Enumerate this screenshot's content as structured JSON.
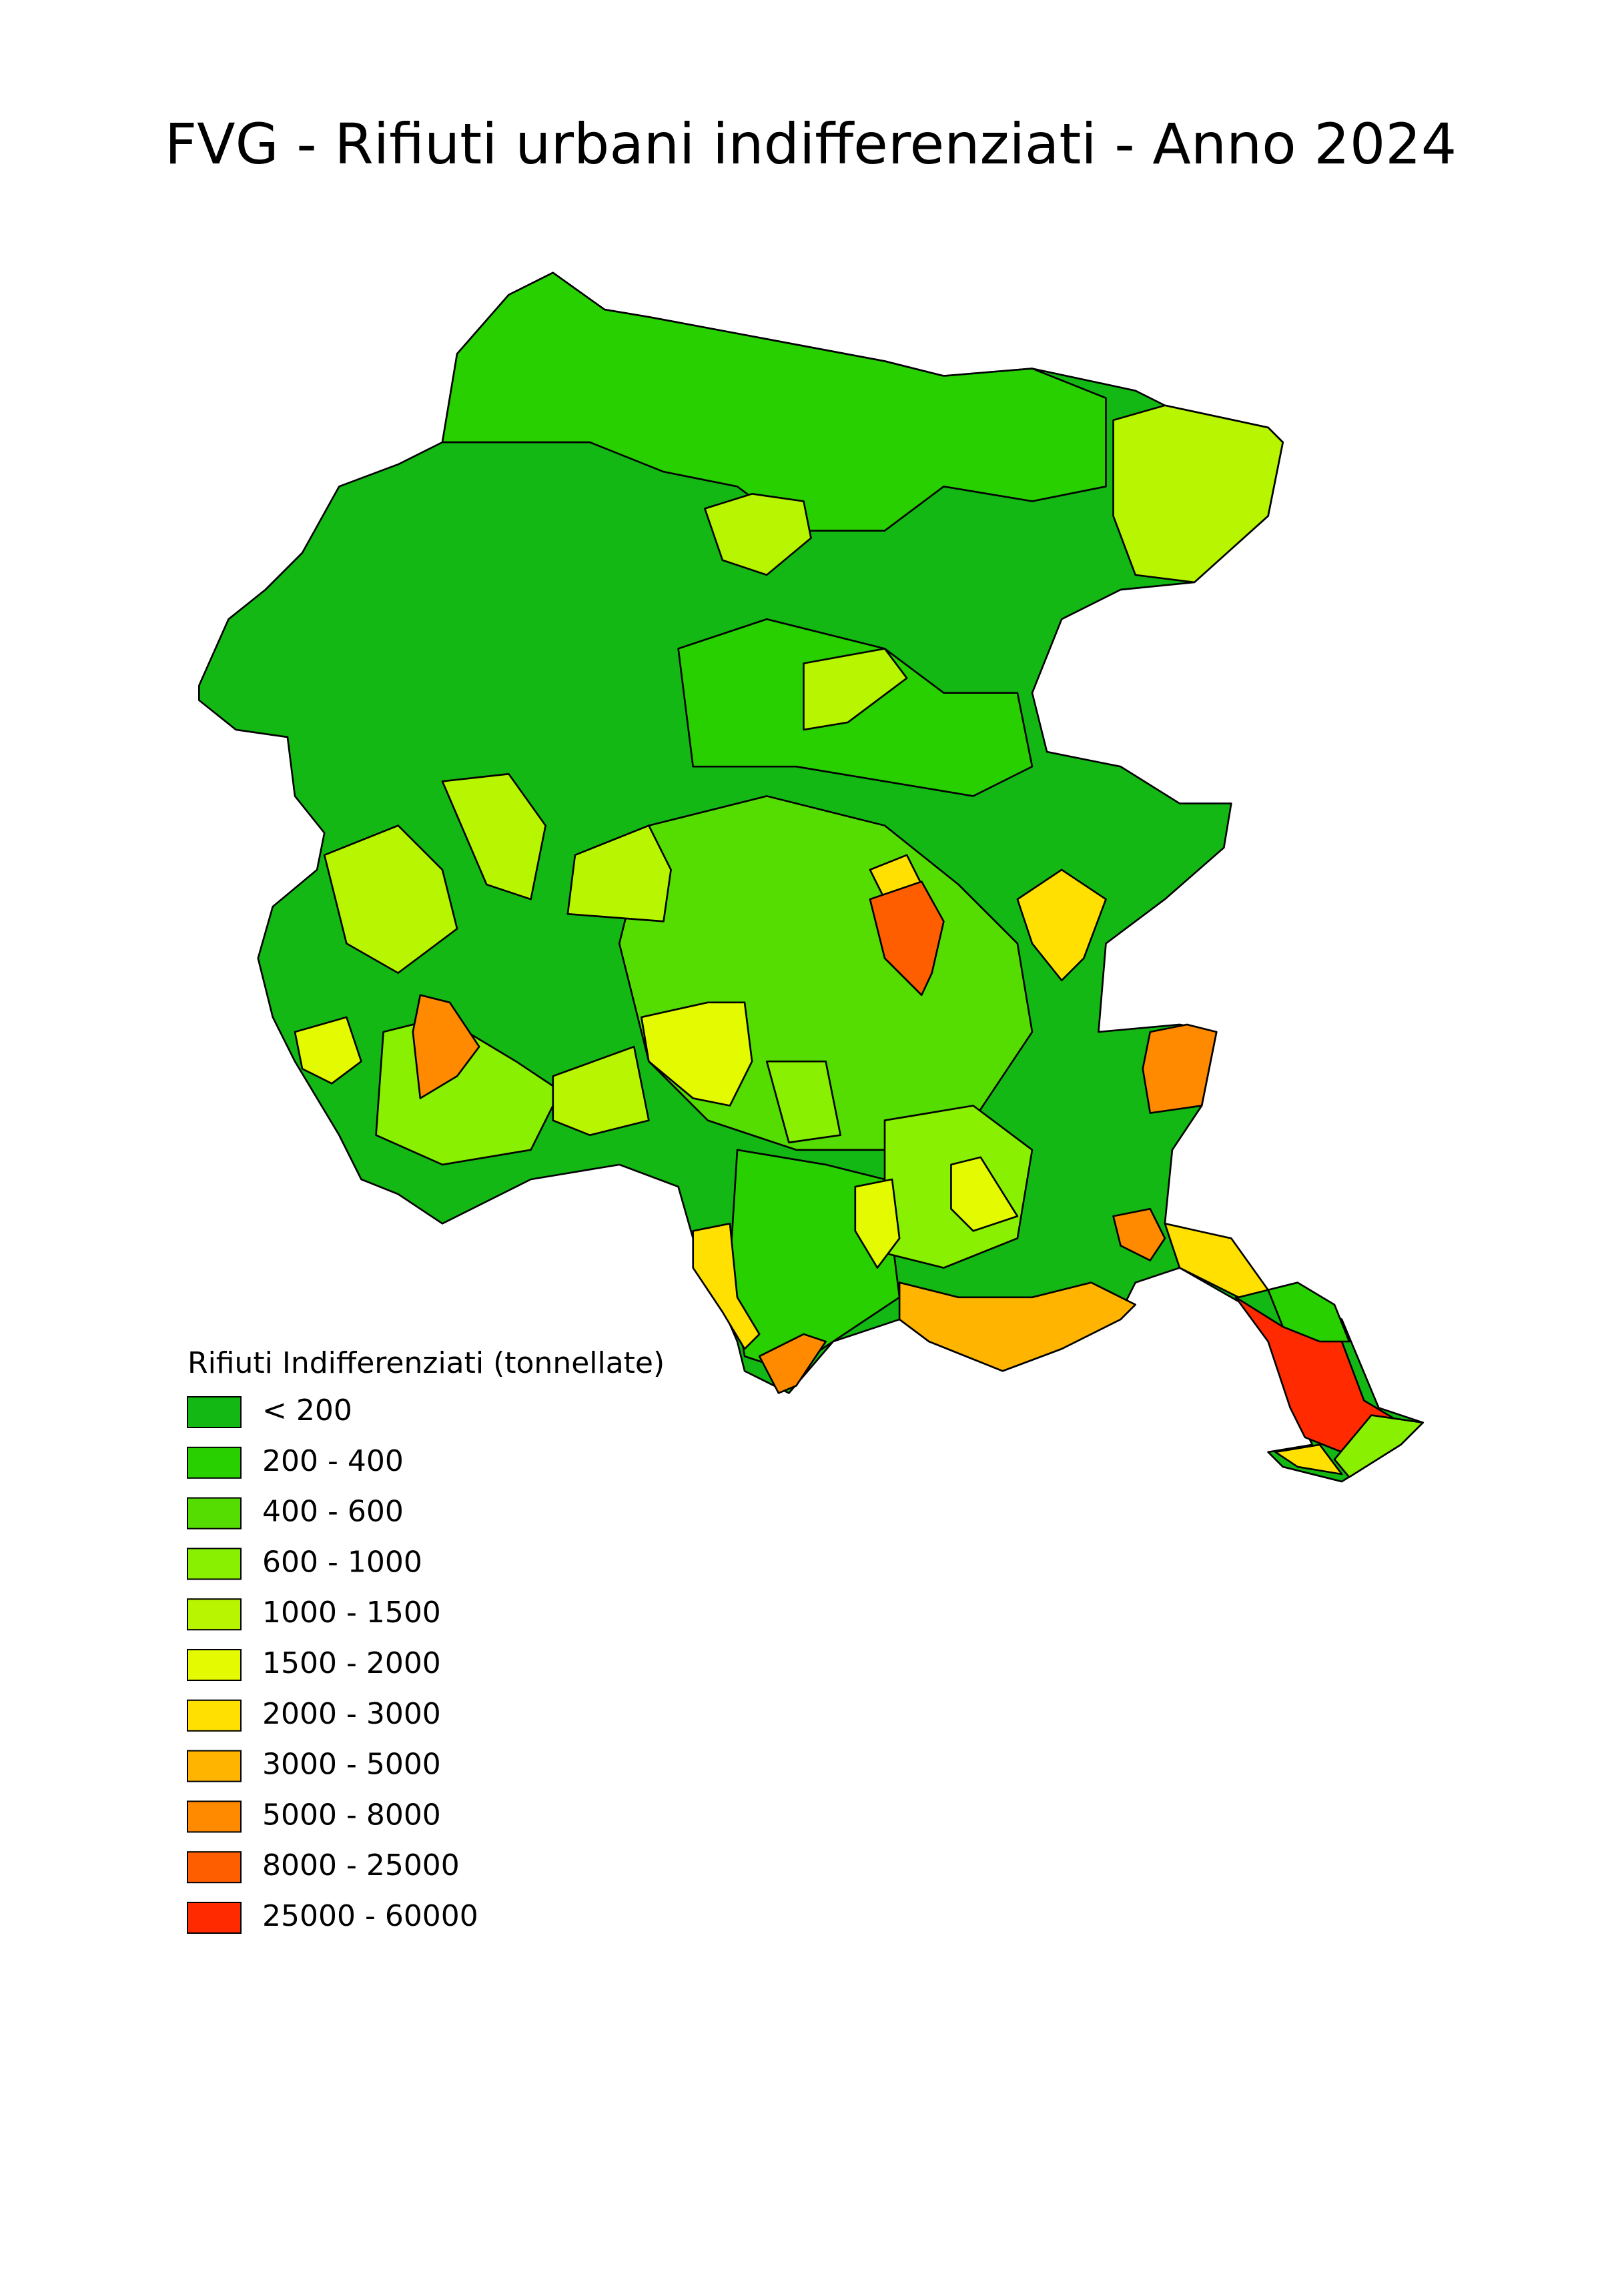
{
  "title": "FVG - Rifiuti urbani indifferenziati - Anno 2024",
  "legend": {
    "title": "Rifiuti Indifferenziati (tonnellate)",
    "items": [
      {
        "label": "< 200",
        "color": "#14b814"
      },
      {
        "label": "200 - 400",
        "color": "#28d000"
      },
      {
        "label": "400 - 600",
        "color": "#55dc00"
      },
      {
        "label": "600 - 1000",
        "color": "#88f000"
      },
      {
        "label": "1000 - 1500",
        "color": "#b8f500"
      },
      {
        "label": "1500 - 2000",
        "color": "#e4fa00"
      },
      {
        "label": "2000 - 3000",
        "color": "#ffe000"
      },
      {
        "label": "3000 - 5000",
        "color": "#ffb400"
      },
      {
        "label": "5000 - 8000",
        "color": "#ff8a00"
      },
      {
        "label": "8000 - 25000",
        "color": "#ff5e00"
      },
      {
        "label": "25000 - 60000",
        "color": "#ff2a00"
      }
    ]
  }
}
